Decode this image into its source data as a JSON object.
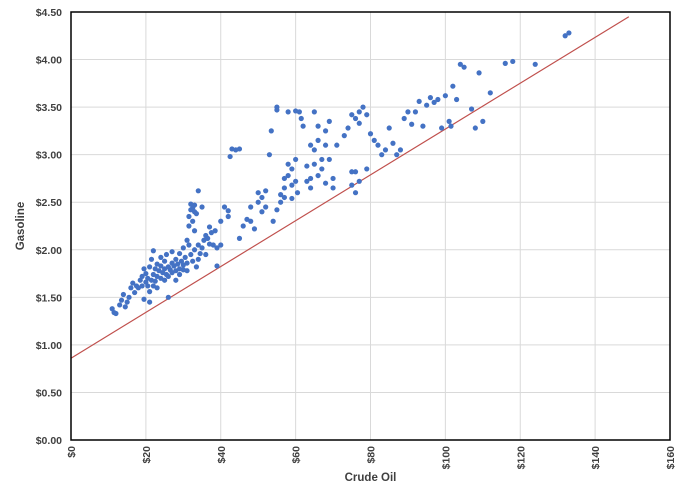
{
  "chart_data": {
    "type": "scatter",
    "title": "",
    "xlabel": "Crude Oil",
    "ylabel": "Gasoline",
    "xlim": [
      0,
      160
    ],
    "ylim": [
      0,
      4.5
    ],
    "x_ticks": [
      "$0",
      "$20",
      "$40",
      "$60",
      "$80",
      "$100",
      "$120",
      "$140",
      "$160"
    ],
    "y_ticks": [
      "$0.00",
      "$0.50",
      "$1.00",
      "$1.50",
      "$2.00",
      "$2.50",
      "$3.00",
      "$3.50",
      "$4.00",
      "$4.50"
    ],
    "grid": true,
    "legend": "none",
    "colors": {
      "points": "#4472c4",
      "line": "#c0504d",
      "grid": "#d9d9d9",
      "frame": "#000000"
    },
    "reference_line": {
      "x": [
        0,
        149
      ],
      "y": [
        0.86,
        4.45
      ]
    },
    "points": [
      [
        11,
        1.38
      ],
      [
        11.5,
        1.34
      ],
      [
        12,
        1.33
      ],
      [
        13,
        1.42
      ],
      [
        13.5,
        1.47
      ],
      [
        14,
        1.53
      ],
      [
        14.5,
        1.4
      ],
      [
        15,
        1.45
      ],
      [
        15.5,
        1.5
      ],
      [
        16,
        1.6
      ],
      [
        16.5,
        1.65
      ],
      [
        17,
        1.55
      ],
      [
        17.5,
        1.62
      ],
      [
        18,
        1.6
      ],
      [
        18.5,
        1.68
      ],
      [
        19,
        1.62
      ],
      [
        19,
        1.72
      ],
      [
        19.5,
        1.8
      ],
      [
        19.5,
        1.48
      ],
      [
        20,
        1.66
      ],
      [
        20,
        1.75
      ],
      [
        20.5,
        1.7
      ],
      [
        20.5,
        1.62
      ],
      [
        21,
        1.82
      ],
      [
        21,
        1.56
      ],
      [
        21,
        1.45
      ],
      [
        21.5,
        1.68
      ],
      [
        21.5,
        1.9
      ],
      [
        22,
        1.74
      ],
      [
        22,
        1.99
      ],
      [
        22,
        1.62
      ],
      [
        22.5,
        1.8
      ],
      [
        22.5,
        1.67
      ],
      [
        23,
        1.72
      ],
      [
        23,
        1.85
      ],
      [
        23,
        1.6
      ],
      [
        23.5,
        1.78
      ],
      [
        24,
        1.83
      ],
      [
        24,
        1.7
      ],
      [
        24,
        1.92
      ],
      [
        24.5,
        1.76
      ],
      [
        25,
        1.8
      ],
      [
        25,
        1.88
      ],
      [
        25,
        1.68
      ],
      [
        25.5,
        1.74
      ],
      [
        25.5,
        1.95
      ],
      [
        26,
        1.82
      ],
      [
        26,
        1.72
      ],
      [
        26,
        1.5
      ],
      [
        26.5,
        1.79
      ],
      [
        27,
        1.86
      ],
      [
        27,
        1.76
      ],
      [
        27,
        1.98
      ],
      [
        27.5,
        1.83
      ],
      [
        28,
        1.78
      ],
      [
        28,
        1.9
      ],
      [
        28,
        1.68
      ],
      [
        28.5,
        1.85
      ],
      [
        29,
        1.8
      ],
      [
        29,
        1.96
      ],
      [
        29,
        1.74
      ],
      [
        29.5,
        1.88
      ],
      [
        30,
        1.84
      ],
      [
        30,
        2.02
      ],
      [
        30,
        1.79
      ],
      [
        30.5,
        1.92
      ],
      [
        31,
        1.86
      ],
      [
        31,
        2.1
      ],
      [
        31,
        1.78
      ],
      [
        31.5,
        2.25
      ],
      [
        31.5,
        2.35
      ],
      [
        31.5,
        2.05
      ],
      [
        32,
        2.42
      ],
      [
        32,
        2.48
      ],
      [
        32,
        1.95
      ],
      [
        32.5,
        2.3
      ],
      [
        32.5,
        2.44
      ],
      [
        32.5,
        1.88
      ],
      [
        33,
        2.4
      ],
      [
        33,
        2.2
      ],
      [
        33,
        2.0
      ],
      [
        33,
        2.47
      ],
      [
        33.5,
        2.38
      ],
      [
        33.5,
        1.82
      ],
      [
        34,
        1.9
      ],
      [
        34,
        2.05
      ],
      [
        34,
        2.62
      ],
      [
        34.5,
        1.96
      ],
      [
        35,
        2.02
      ],
      [
        35,
        2.45
      ],
      [
        35.5,
        2.1
      ],
      [
        36,
        2.15
      ],
      [
        36,
        1.95
      ],
      [
        36.5,
        2.12
      ],
      [
        37,
        2.06
      ],
      [
        37,
        2.24
      ],
      [
        37.5,
        2.18
      ],
      [
        38,
        2.05
      ],
      [
        38.5,
        2.2
      ],
      [
        39,
        2.02
      ],
      [
        39,
        1.83
      ],
      [
        40,
        2.05
      ],
      [
        40,
        2.3
      ],
      [
        41,
        2.45
      ],
      [
        42,
        2.41
      ],
      [
        42,
        2.35
      ],
      [
        42.5,
        2.98
      ],
      [
        43,
        3.06
      ],
      [
        44,
        3.05
      ],
      [
        45,
        2.12
      ],
      [
        45,
        3.06
      ],
      [
        46,
        2.25
      ],
      [
        47,
        2.32
      ],
      [
        48,
        2.3
      ],
      [
        48,
        2.45
      ],
      [
        49,
        2.22
      ],
      [
        50,
        2.5
      ],
      [
        50,
        2.6
      ],
      [
        51,
        2.4
      ],
      [
        51,
        2.55
      ],
      [
        52,
        2.62
      ],
      [
        52,
        2.45
      ],
      [
        53,
        3.0
      ],
      [
        53.5,
        3.25
      ],
      [
        54,
        2.3
      ],
      [
        55,
        2.42
      ],
      [
        55,
        3.5
      ],
      [
        55,
        3.47
      ],
      [
        56,
        2.5
      ],
      [
        56,
        2.58
      ],
      [
        57,
        2.65
      ],
      [
        57,
        2.75
      ],
      [
        57,
        2.55
      ],
      [
        58,
        2.9
      ],
      [
        58,
        2.78
      ],
      [
        58,
        3.45
      ],
      [
        59,
        2.85
      ],
      [
        59,
        2.68
      ],
      [
        59,
        2.54
      ],
      [
        60,
        2.95
      ],
      [
        60,
        2.72
      ],
      [
        60,
        3.46
      ],
      [
        60.5,
        2.6
      ],
      [
        61,
        3.45
      ],
      [
        61.5,
        3.38
      ],
      [
        62,
        3.3
      ],
      [
        63,
        2.88
      ],
      [
        63,
        2.72
      ],
      [
        64,
        3.1
      ],
      [
        64,
        2.65
      ],
      [
        64,
        2.75
      ],
      [
        65,
        2.9
      ],
      [
        65,
        3.05
      ],
      [
        65,
        3.45
      ],
      [
        66,
        2.78
      ],
      [
        66,
        3.15
      ],
      [
        66,
        3.3
      ],
      [
        67,
        2.95
      ],
      [
        67,
        2.85
      ],
      [
        68,
        3.1
      ],
      [
        68,
        2.7
      ],
      [
        68,
        3.25
      ],
      [
        69,
        2.95
      ],
      [
        69,
        3.35
      ],
      [
        70,
        2.75
      ],
      [
        70,
        2.65
      ],
      [
        71,
        3.1
      ],
      [
        73,
        3.2
      ],
      [
        74,
        3.28
      ],
      [
        75,
        2.68
      ],
      [
        75,
        2.82
      ],
      [
        75,
        3.42
      ],
      [
        76,
        2.6
      ],
      [
        76,
        2.82
      ],
      [
        76,
        3.38
      ],
      [
        77,
        3.33
      ],
      [
        77,
        2.72
      ],
      [
        77,
        3.45
      ],
      [
        78,
        3.5
      ],
      [
        79,
        3.42
      ],
      [
        79,
        2.85
      ],
      [
        80,
        3.22
      ],
      [
        81,
        3.15
      ],
      [
        82,
        3.1
      ],
      [
        83,
        3.0
      ],
      [
        84,
        3.05
      ],
      [
        85,
        3.28
      ],
      [
        86,
        3.12
      ],
      [
        87,
        3.0
      ],
      [
        88,
        3.05
      ],
      [
        89,
        3.38
      ],
      [
        90,
        3.45
      ],
      [
        91,
        3.32
      ],
      [
        92,
        3.45
      ],
      [
        93,
        3.56
      ],
      [
        94,
        3.3
      ],
      [
        95,
        3.52
      ],
      [
        96,
        3.6
      ],
      [
        97,
        3.55
      ],
      [
        98,
        3.58
      ],
      [
        99,
        3.28
      ],
      [
        100,
        3.62
      ],
      [
        101,
        3.35
      ],
      [
        101.5,
        3.3
      ],
      [
        102,
        3.72
      ],
      [
        103,
        3.58
      ],
      [
        104,
        3.95
      ],
      [
        105,
        3.92
      ],
      [
        107,
        3.48
      ],
      [
        108,
        3.28
      ],
      [
        109,
        3.86
      ],
      [
        110,
        3.35
      ],
      [
        112,
        3.65
      ],
      [
        116,
        3.96
      ],
      [
        118,
        3.98
      ],
      [
        124,
        3.95
      ],
      [
        132,
        4.25
      ],
      [
        133,
        4.28
      ]
    ]
  }
}
